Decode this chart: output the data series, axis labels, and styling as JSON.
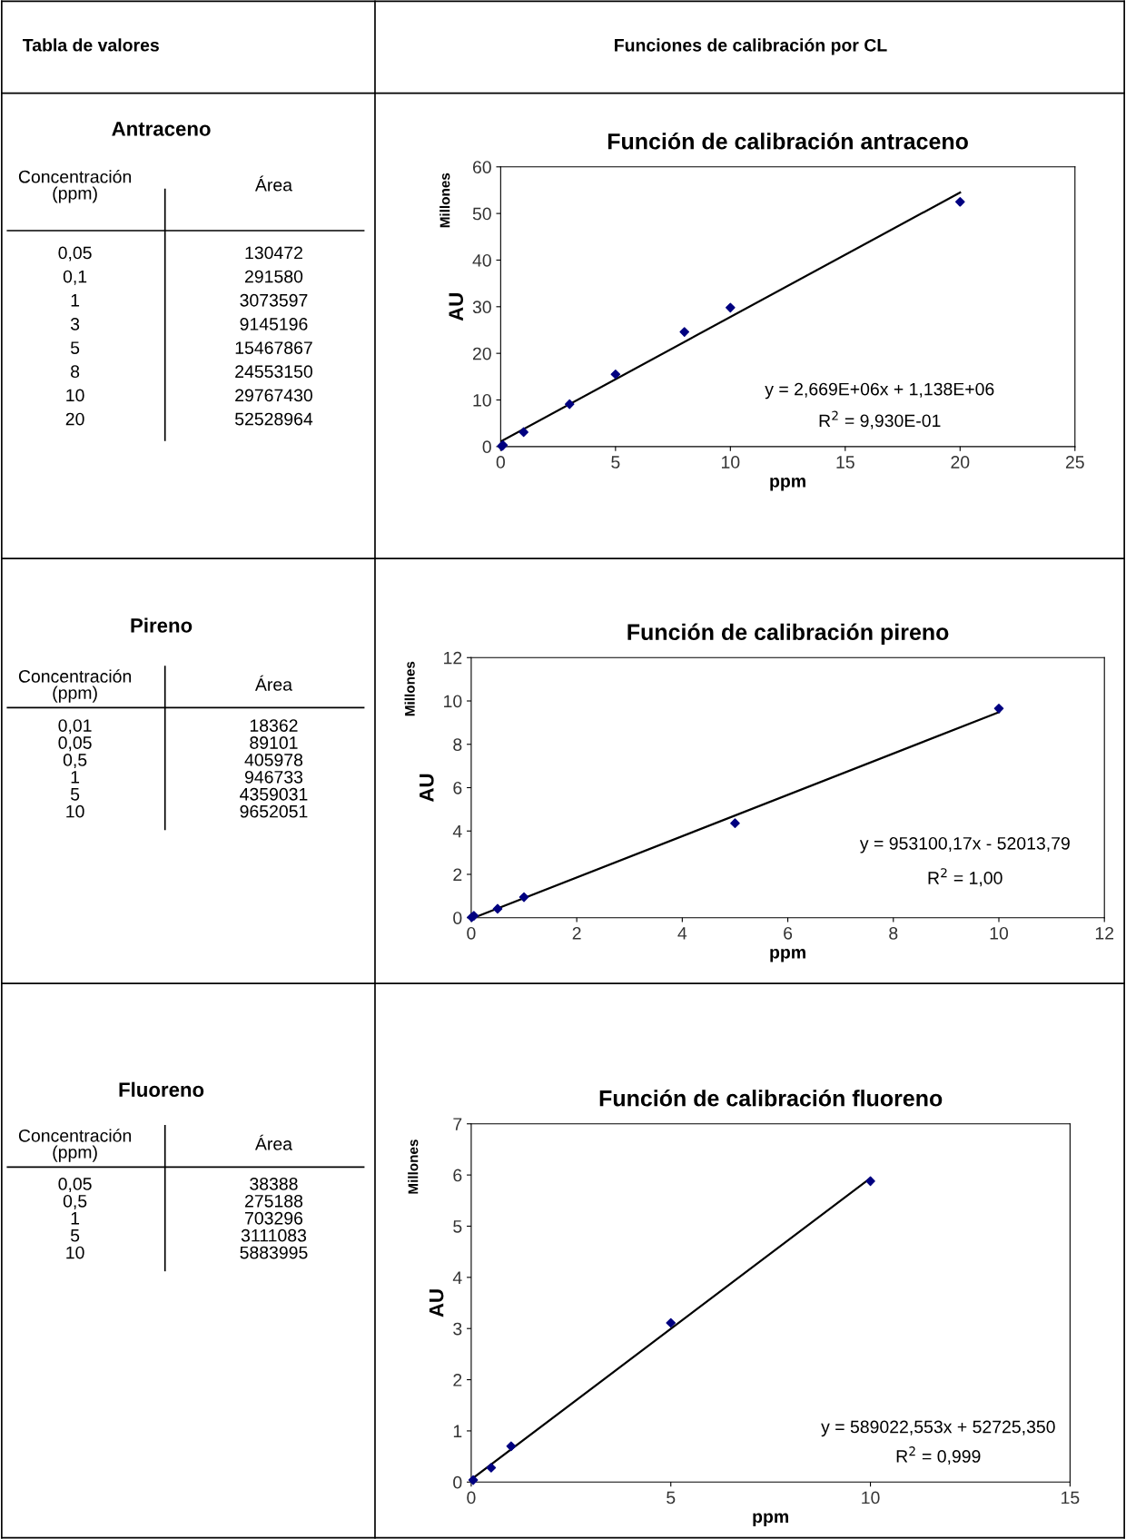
{
  "chart_data": [
    {
      "type": "other",
      "annotations": [
        "Tabla de valores",
        "Funciones de calibración por CL"
      ]
    },
    {
      "type": "other",
      "title": "Antraceno",
      "annotations": [
        "Concentración\n(ppm)",
        "Área",
        "0,05",
        "130472",
        "0,1",
        "291580",
        "1",
        "3073597",
        "3",
        "9145196",
        "5",
        "15467867",
        "8",
        "24553150",
        "10",
        "29767430",
        "20",
        "52528964"
      ]
    },
    {
      "type": "scatter",
      "title": "Función de calibración antraceno",
      "xlabel": "ppm",
      "ylabel": "AU",
      "xlim": [
        0,
        25
      ],
      "xticks": [
        0,
        5,
        10,
        15,
        20,
        25
      ],
      "ylim": [
        0,
        60
      ],
      "yticks": [
        0,
        10,
        20,
        30,
        40,
        50,
        60
      ],
      "series": [
        {
          "type": "scatter",
          "color": "#000080",
          "marker": "diamond",
          "x": [
            0.05,
            0.1,
            1,
            3,
            5,
            8,
            10,
            20
          ],
          "values": [
            0.1,
            0.3,
            3.1,
            9.1,
            15.5,
            24.6,
            29.8,
            52.5
          ]
        },
        {
          "type": "line",
          "color": "#000000",
          "marker": "none",
          "x": [
            0,
            20
          ],
          "values": [
            1.1,
            54.5
          ]
        }
      ],
      "annotations": [
        "y = 2,669E+06x + 1,138E+06",
        "R$^{2}$ = 9,930E-01",
        "Millones"
      ]
    },
    {
      "type": "other",
      "title": "Pireno",
      "annotations": [
        "Concentración\n(ppm)",
        "Área",
        "0,01",
        "18362",
        "0,05",
        "89101",
        "0,5",
        "405978",
        "1",
        "946733",
        "5",
        "4359031",
        "10",
        "9652051"
      ]
    },
    {
      "type": "scatter",
      "title": "Función de calibración pireno",
      "xlabel": "ppm",
      "ylabel": "AU",
      "xlim": [
        0,
        12
      ],
      "xticks": [
        0,
        2,
        4,
        6,
        8,
        10,
        12
      ],
      "ylim": [
        0,
        12
      ],
      "yticks": [
        0,
        2,
        4,
        6,
        8,
        10,
        12
      ],
      "series": [
        {
          "type": "scatter",
          "color": "#000080",
          "marker": "diamond",
          "x": [
            0.01,
            0.05,
            0.5,
            1,
            5,
            10
          ],
          "values": [
            0.02,
            0.09,
            0.41,
            0.95,
            4.36,
            9.65
          ]
        },
        {
          "type": "line",
          "color": "#000000",
          "marker": "none",
          "x": [
            0.05,
            10
          ],
          "values": [
            0,
            9.48
          ]
        }
      ],
      "annotations": [
        "y = 953100,17x - 52013,79",
        "R$^{2}$ = 1,00",
        "Millones"
      ]
    },
    {
      "type": "other",
      "title": "Fluoreno",
      "annotations": [
        "Concentración\n(ppm)",
        "Área",
        "0,05",
        "38388",
        "0,5",
        "275188",
        "1",
        "703296",
        "5",
        "3111083",
        "10",
        "5883995"
      ]
    },
    {
      "type": "scatter",
      "title": "Función de calibración fluoreno",
      "xlabel": "ppm",
      "ylabel": "AU",
      "xlim": [
        0,
        15
      ],
      "xticks": [
        0,
        5,
        10,
        15
      ],
      "ylim": [
        0,
        7
      ],
      "yticks": [
        0,
        1,
        2,
        3,
        4,
        5,
        6,
        7
      ],
      "series": [
        {
          "type": "scatter",
          "color": "#000080",
          "marker": "diamond",
          "x": [
            0.05,
            0.5,
            1,
            5,
            10
          ],
          "values": [
            0.04,
            0.28,
            0.7,
            3.11,
            5.88
          ]
        },
        {
          "type": "line",
          "color": "#000000",
          "marker": "none",
          "x": [
            0,
            10
          ],
          "values": [
            0.05,
            5.94
          ]
        }
      ],
      "annotations": [
        "y = 589022,553x + 52725,350",
        "R$^{2}$ = 0,999",
        "Millones"
      ]
    }
  ]
}
